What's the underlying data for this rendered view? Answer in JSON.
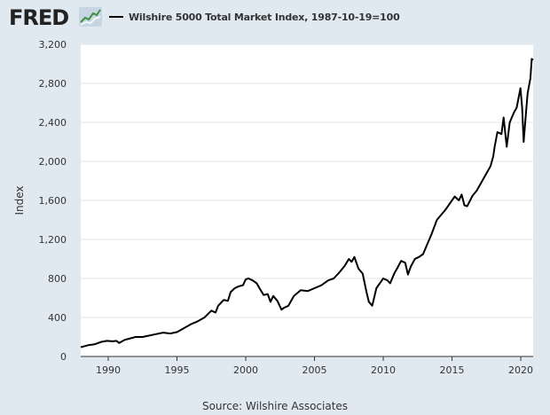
{
  "header": {
    "logo_text": "FRED",
    "logo_icon": "trend-chart-icon",
    "legend_label": "Wilshire 5000 Total Market Index, 1987-10-19=100",
    "line_color": "#000000"
  },
  "footer": {
    "source": "Source: Wilshire Associates"
  },
  "chart_data": {
    "type": "line",
    "title": "",
    "xlabel": "",
    "ylabel": "Index",
    "xlim": [
      1988.0,
      2020.9
    ],
    "ylim": [
      0,
      3200
    ],
    "x_ticks": [
      1990,
      1995,
      2000,
      2005,
      2010,
      2015,
      2020
    ],
    "y_ticks": [
      0,
      400,
      800,
      1200,
      1600,
      2000,
      2400,
      2800,
      3200
    ],
    "y_tick_labels": [
      "0",
      "400",
      "800",
      "1,200",
      "1,600",
      "2,000",
      "2,400",
      "2,800",
      "3,200"
    ],
    "grid": true,
    "legend_position": "top",
    "series": [
      {
        "name": "Wilshire 5000 Total Market Index, 1987-10-19=100",
        "color": "#000000",
        "x": [
          1988.0,
          1988.5,
          1989.0,
          1989.5,
          1989.9,
          1990.3,
          1990.6,
          1990.8,
          1991.2,
          1991.6,
          1992.0,
          1992.5,
          1993.0,
          1993.5,
          1994.0,
          1994.5,
          1995.0,
          1995.5,
          1996.0,
          1996.5,
          1997.0,
          1997.5,
          1997.8,
          1998.0,
          1998.4,
          1998.7,
          1998.9,
          1999.2,
          1999.5,
          1999.8,
          2000.0,
          2000.2,
          2000.5,
          2000.8,
          2001.0,
          2001.3,
          2001.6,
          2001.8,
          2002.0,
          2002.3,
          2002.6,
          2002.8,
          2003.1,
          2003.5,
          2004.0,
          2004.5,
          2005.0,
          2005.5,
          2006.0,
          2006.4,
          2006.8,
          2007.2,
          2007.5,
          2007.7,
          2007.9,
          2008.2,
          2008.5,
          2008.8,
          2008.95,
          2009.2,
          2009.5,
          2009.8,
          2010.0,
          2010.3,
          2010.5,
          2010.8,
          2011.0,
          2011.3,
          2011.6,
          2011.8,
          2012.0,
          2012.3,
          2012.6,
          2012.9,
          2013.2,
          2013.5,
          2013.9,
          2014.2,
          2014.5,
          2014.9,
          2015.2,
          2015.5,
          2015.7,
          2015.9,
          2016.1,
          2016.5,
          2016.8,
          2017.0,
          2017.4,
          2017.8,
          2018.0,
          2018.1,
          2018.3,
          2018.6,
          2018.75,
          2018.98,
          2019.2,
          2019.5,
          2019.7,
          2019.98,
          2020.1,
          2020.21,
          2020.35,
          2020.5,
          2020.7,
          2020.8,
          2020.9
        ],
        "values": [
          95,
          115,
          125,
          150,
          160,
          155,
          160,
          138,
          170,
          185,
          200,
          200,
          215,
          230,
          245,
          235,
          250,
          290,
          330,
          360,
          400,
          470,
          450,
          520,
          580,
          570,
          660,
          700,
          720,
          730,
          790,
          800,
          780,
          750,
          700,
          630,
          640,
          560,
          620,
          570,
          480,
          500,
          520,
          620,
          680,
          670,
          700,
          730,
          780,
          800,
          860,
          930,
          1000,
          970,
          1020,
          900,
          850,
          650,
          560,
          520,
          700,
          760,
          800,
          780,
          750,
          850,
          900,
          980,
          960,
          840,
          920,
          1000,
          1020,
          1050,
          1150,
          1250,
          1400,
          1450,
          1500,
          1580,
          1640,
          1600,
          1660,
          1550,
          1540,
          1650,
          1700,
          1750,
          1850,
          1950,
          2050,
          2150,
          2300,
          2280,
          2450,
          2150,
          2400,
          2500,
          2550,
          2750,
          2550,
          2200,
          2450,
          2700,
          2850,
          3050,
          3040
        ]
      }
    ]
  }
}
